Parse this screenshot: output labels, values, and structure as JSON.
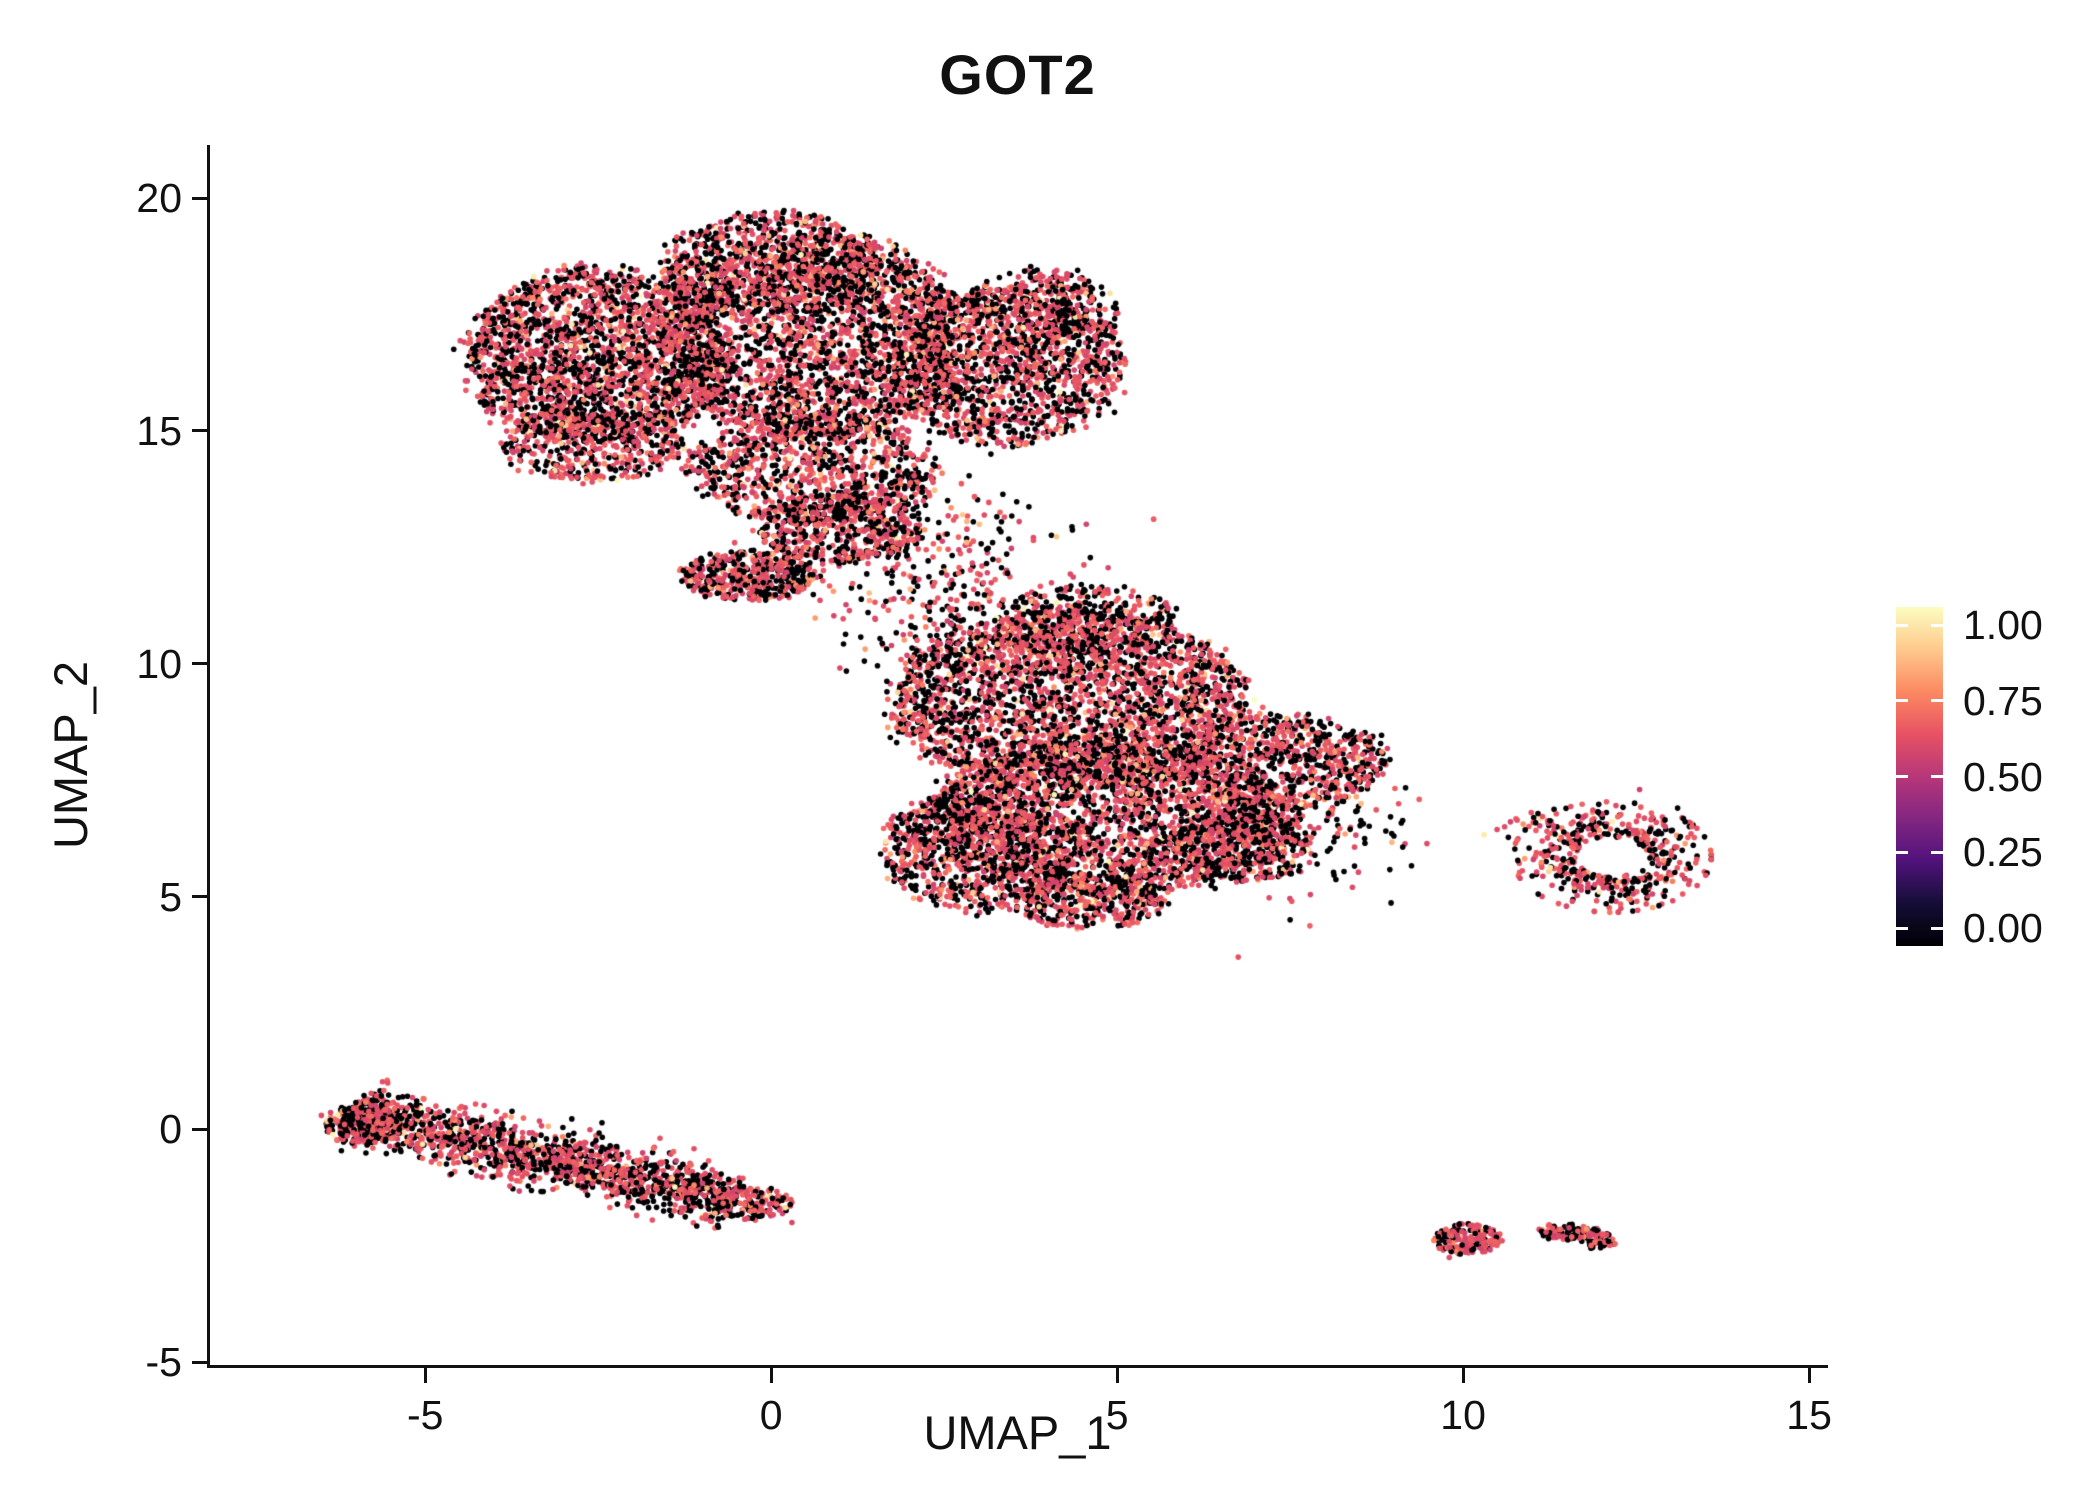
{
  "chart_data": {
    "type": "scatter",
    "title": "GOT2",
    "xlabel": "UMAP_1",
    "ylabel": "UMAP_2",
    "xlim": [
      -8.11,
      15.23
    ],
    "ylim": [
      -5.06,
      21.14
    ],
    "xticks": [
      -5,
      0,
      5,
      10,
      15
    ],
    "xtick_labels": [
      "-5",
      "0",
      "5",
      "10",
      "15"
    ],
    "yticks": [
      -5,
      0,
      5,
      10,
      15,
      20
    ],
    "ytick_labels": [
      "-5",
      "0",
      "5",
      "10",
      "15",
      "20"
    ],
    "grid": false,
    "legend_position": "right",
    "point_radius_px": 2.8,
    "background_color": "#ffffff",
    "axis_color": "#111111",
    "colorbar": {
      "tick_labels": [
        "1.00",
        "0.75",
        "0.50",
        "0.25",
        "0.00"
      ],
      "tick_values": [
        1.0,
        0.75,
        0.5,
        0.25,
        0.0
      ],
      "colormap": "magma",
      "stops": [
        {
          "v": 0.0,
          "color": "#000004"
        },
        {
          "v": 0.125,
          "color": "#140e36"
        },
        {
          "v": 0.25,
          "color": "#50127b"
        },
        {
          "v": 0.375,
          "color": "#832681"
        },
        {
          "v": 0.5,
          "color": "#b73779"
        },
        {
          "v": 0.625,
          "color": "#e75263"
        },
        {
          "v": 0.75,
          "color": "#fc8961"
        },
        {
          "v": 0.875,
          "color": "#fec98d"
        },
        {
          "v": 1.0,
          "color": "#fcfdbf"
        }
      ]
    },
    "expression_mix": {
      "p_zero": 0.43,
      "p_mid": 0.495,
      "p_high": 0.055,
      "p_max": 0.02,
      "mid_range": [
        0.56,
        0.68
      ],
      "high_range": [
        0.68,
        0.85
      ],
      "max_range": [
        0.85,
        1.0
      ]
    },
    "clusters": [
      {
        "name": "top-left-lobe",
        "shape": "disk",
        "cx": -2.5,
        "cy": 16.6,
        "rx": 1.9,
        "ry": 1.9,
        "n": 2200
      },
      {
        "name": "top-center-lobe",
        "shape": "disk",
        "cx": 0.6,
        "cy": 17.0,
        "rx": 2.2,
        "ry": 2.2,
        "n": 2500
      },
      {
        "name": "top-crown",
        "shape": "disk",
        "cx": 0.0,
        "cy": 18.6,
        "rx": 1.6,
        "ry": 1.1,
        "n": 800
      },
      {
        "name": "top-right-lobe",
        "shape": "disk",
        "cx": 3.4,
        "cy": 16.4,
        "rx": 1.7,
        "ry": 1.7,
        "n": 1400
      },
      {
        "name": "top-right-upper",
        "shape": "disk",
        "cx": 3.9,
        "cy": 17.6,
        "rx": 1.1,
        "ry": 0.9,
        "n": 350
      },
      {
        "name": "top-bottom-bulge",
        "shape": "disk",
        "cx": 0.6,
        "cy": 14.2,
        "rx": 1.8,
        "ry": 1.2,
        "n": 900
      },
      {
        "name": "top-left-underside",
        "shape": "disk",
        "cx": -2.6,
        "cy": 14.7,
        "rx": 1.3,
        "ry": 0.8,
        "n": 450
      },
      {
        "name": "top-neck",
        "shape": "disk",
        "cx": 1.0,
        "cy": 12.9,
        "rx": 1.2,
        "ry": 0.8,
        "n": 500
      },
      {
        "name": "left-spur",
        "shape": "disk",
        "cx": -0.3,
        "cy": 11.9,
        "rx": 1.0,
        "ry": 0.55,
        "n": 420
      },
      {
        "name": "bridge-sparse",
        "shape": "gauss",
        "cx": 2.3,
        "cy": 12.2,
        "sx": 1.0,
        "sy": 0.9,
        "n": 240
      },
      {
        "name": "mid-upper",
        "shape": "disk",
        "cx": 4.3,
        "cy": 9.2,
        "rx": 2.6,
        "ry": 1.9,
        "n": 2600
      },
      {
        "name": "mid-top",
        "shape": "disk",
        "cx": 4.6,
        "cy": 10.9,
        "rx": 1.3,
        "ry": 0.8,
        "n": 400
      },
      {
        "name": "mid-lower",
        "shape": "disk",
        "cx": 4.8,
        "cy": 6.7,
        "rx": 2.6,
        "ry": 1.7,
        "n": 2400
      },
      {
        "name": "mid-left-bottom",
        "shape": "disk",
        "cx": 3.0,
        "cy": 6.0,
        "rx": 1.4,
        "ry": 1.3,
        "n": 800
      },
      {
        "name": "mid-right-lobe",
        "shape": "disk",
        "cx": 7.4,
        "cy": 7.9,
        "rx": 1.5,
        "ry": 1.0,
        "n": 700
      },
      {
        "name": "mid-bottom-tip",
        "shape": "disk",
        "cx": 4.6,
        "cy": 4.9,
        "rx": 1.1,
        "ry": 0.6,
        "n": 380
      },
      {
        "name": "mid-right-bottom",
        "shape": "disk",
        "cx": 6.8,
        "cy": 6.1,
        "rx": 1.0,
        "ry": 0.8,
        "n": 420
      },
      {
        "name": "mid-right-fringe",
        "shape": "gauss",
        "cx": 7.8,
        "cy": 6.6,
        "sx": 0.7,
        "sy": 0.8,
        "n": 180
      },
      {
        "name": "mid-top-bridge",
        "shape": "gauss",
        "cx": 2.9,
        "cy": 10.9,
        "sx": 0.9,
        "sy": 0.8,
        "n": 200
      },
      {
        "name": "bottom-left-stripe",
        "shape": "stripe",
        "x1": -6.1,
        "y1": 0.35,
        "x2": -0.5,
        "y2": -1.55,
        "w": 0.3,
        "n": 1500
      },
      {
        "name": "bottom-left-cap",
        "shape": "disk",
        "cx": -5.9,
        "cy": 0.1,
        "rx": 0.55,
        "ry": 0.45,
        "n": 220
      },
      {
        "name": "bottom-left-tail",
        "shape": "disk",
        "cx": -0.3,
        "cy": -1.6,
        "rx": 0.6,
        "ry": 0.35,
        "n": 160
      },
      {
        "name": "right-ring",
        "shape": "ring",
        "cx": 12.15,
        "cy": 5.85,
        "r0": 0.45,
        "rs": 0.45,
        "rmax": 1.25,
        "ax": 1.15,
        "ay": 0.95,
        "n": 480
      },
      {
        "name": "right-ring-outlier",
        "shape": "gauss",
        "cx": 11.05,
        "cy": 6.6,
        "sx": 0.3,
        "sy": 0.15,
        "n": 22
      },
      {
        "name": "bottom-island-1",
        "shape": "disk",
        "cx": 10.05,
        "cy": -2.35,
        "rx": 0.48,
        "ry": 0.34,
        "n": 170
      },
      {
        "name": "bottom-island-2",
        "shape": "disk",
        "cx": 11.5,
        "cy": -2.2,
        "rx": 0.45,
        "ry": 0.18,
        "n": 90
      },
      {
        "name": "bottom-island-3",
        "shape": "disk",
        "cx": 11.95,
        "cy": -2.4,
        "rx": 0.25,
        "ry": 0.18,
        "n": 45
      }
    ],
    "extra_points": [
      [
        6.75,
        3.7,
        0.62
      ],
      [
        7.5,
        4.5,
        0
      ],
      [
        8.4,
        5.2,
        0.6
      ],
      [
        9.0,
        6.3,
        0
      ],
      [
        2.2,
        13.5,
        0.6
      ],
      [
        3.2,
        12.6,
        0
      ],
      [
        1.4,
        11.1,
        0
      ],
      [
        0.3,
        -2.0,
        0.58
      ],
      [
        -6.5,
        0.3,
        0.6
      ],
      [
        9.8,
        -2.75,
        0.6
      ],
      [
        12.55,
        7.3,
        0.55
      ],
      [
        13.1,
        6.9,
        0
      ],
      [
        10.6,
        6.5,
        0.6
      ]
    ]
  }
}
